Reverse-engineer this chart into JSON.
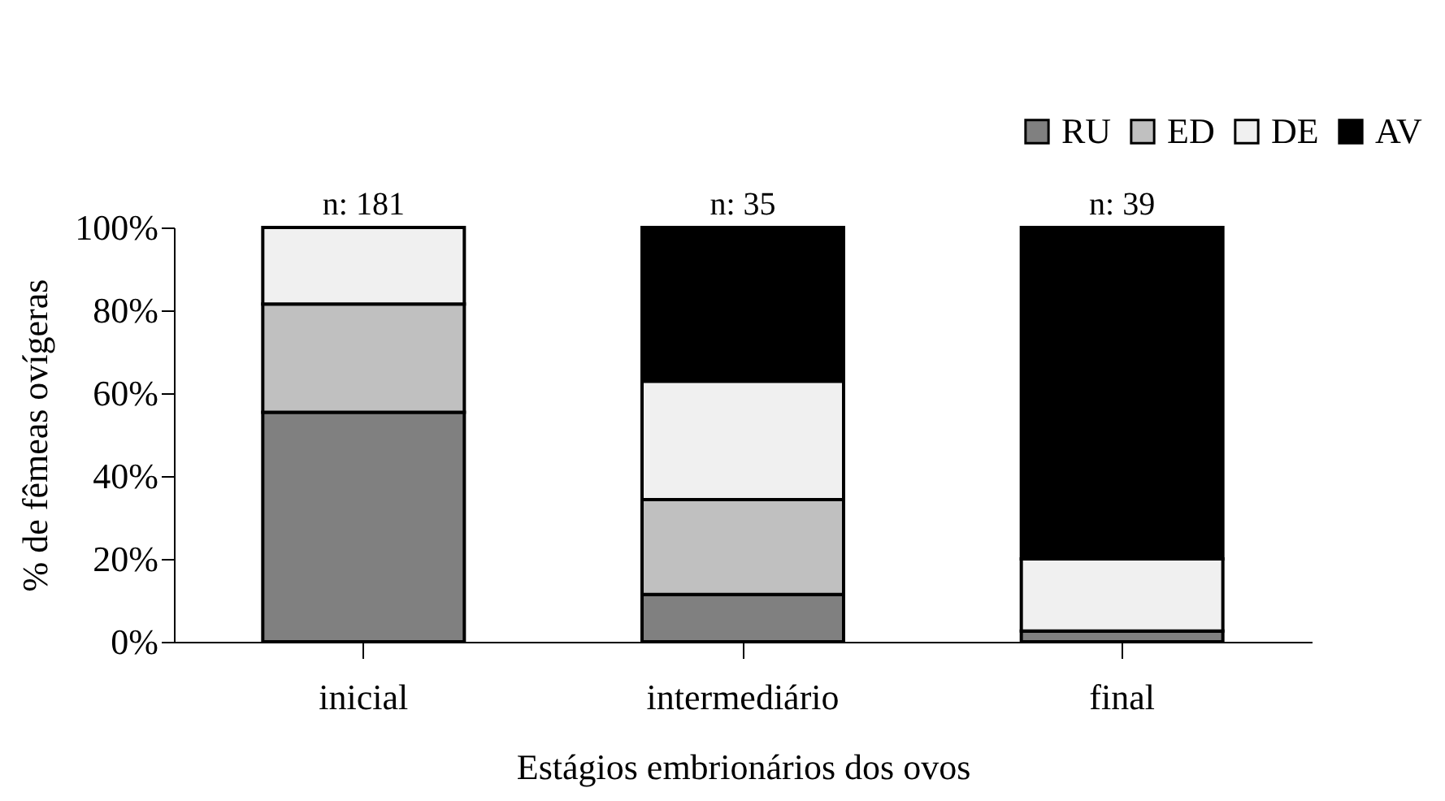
{
  "chart_data": {
    "type": "bar",
    "stacked": true,
    "xlabel": "Estágios embrionários dos ovos",
    "ylabel": "%  de fêmeas ovígeras",
    "categories": [
      "inicial",
      "intermediário",
      "final"
    ],
    "series": [
      {
        "name": "RU",
        "color": "#808080",
        "values": [
          55.4,
          11.4,
          2.6
        ]
      },
      {
        "name": "ED",
        "color": "#c0c0c0",
        "values": [
          26.1,
          22.9,
          0
        ]
      },
      {
        "name": "DE",
        "color": "#f0f0f0",
        "values": [
          18.5,
          28.6,
          17.4
        ]
      },
      {
        "name": "AV",
        "color": "#000000",
        "values": [
          0,
          37.1,
          80
        ]
      }
    ],
    "ylim": [
      0,
      100
    ],
    "yticks": [
      {
        "value": 0,
        "label": "0%"
      },
      {
        "value": 20,
        "label": "20%"
      },
      {
        "value": 40,
        "label": "40%"
      },
      {
        "value": 60,
        "label": "60%"
      },
      {
        "value": 80,
        "label": "80%"
      },
      {
        "value": 100,
        "label": "100%"
      }
    ],
    "grid": false,
    "legend": "top right",
    "annotations": [
      {
        "text": "n: 181",
        "x": "inicial",
        "y": 100
      },
      {
        "text": "n: 35",
        "x": "intermediário",
        "y": 100
      },
      {
        "text": "n: 39",
        "x": "final",
        "y": 100
      }
    ]
  }
}
